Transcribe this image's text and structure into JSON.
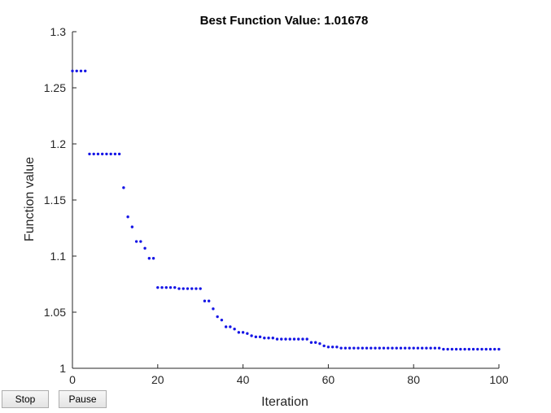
{
  "controls": {
    "stop_label": "Stop",
    "pause_label": "Pause"
  },
  "colors": {
    "marker": "#1515e6",
    "axis": "#262626",
    "text": "#000000"
  },
  "chart_data": {
    "type": "scatter",
    "title": "Best Function Value: 1.01678",
    "xlabel": "Iteration",
    "ylabel": "Function value",
    "xlim": [
      0,
      100
    ],
    "ylim": [
      1,
      1.3
    ],
    "xticks": [
      0,
      20,
      40,
      60,
      80,
      100
    ],
    "yticks": [
      1,
      1.05,
      1.1,
      1.15,
      1.2,
      1.25,
      1.3
    ],
    "xtick_labels": [
      "0",
      "20",
      "40",
      "60",
      "80",
      "100"
    ],
    "ytick_labels": [
      "1",
      "1.05",
      "1.1",
      "1.15",
      "1.2",
      "1.25",
      "1.3"
    ],
    "grid": false,
    "series": [
      {
        "x": [
          0,
          1,
          2,
          3,
          4,
          5,
          6,
          7,
          8,
          9,
          10,
          11,
          12,
          13,
          14,
          15,
          16,
          17,
          18,
          19,
          20,
          21,
          22,
          23,
          24,
          25,
          26,
          27,
          28,
          29,
          30,
          31,
          32,
          33,
          34,
          35,
          36,
          37,
          38,
          39,
          40,
          41,
          42,
          43,
          44,
          45,
          46,
          47,
          48,
          49,
          50,
          51,
          52,
          53,
          54,
          55,
          56,
          57,
          58,
          59,
          60,
          61,
          62,
          63,
          64,
          65,
          66,
          67,
          68,
          69,
          70,
          71,
          72,
          73,
          74,
          75,
          76,
          77,
          78,
          79,
          80,
          81,
          82,
          83,
          84,
          85,
          86,
          87,
          88,
          89,
          90,
          91,
          92,
          93,
          94,
          95,
          96,
          97,
          98,
          99,
          100
        ],
        "y": [
          1.265,
          1.265,
          1.265,
          1.265,
          1.191,
          1.191,
          1.191,
          1.191,
          1.191,
          1.191,
          1.191,
          1.191,
          1.161,
          1.135,
          1.126,
          1.113,
          1.113,
          1.107,
          1.098,
          1.098,
          1.072,
          1.072,
          1.072,
          1.072,
          1.072,
          1.071,
          1.071,
          1.071,
          1.071,
          1.071,
          1.071,
          1.06,
          1.06,
          1.053,
          1.046,
          1.043,
          1.037,
          1.037,
          1.035,
          1.032,
          1.032,
          1.031,
          1.029,
          1.028,
          1.028,
          1.027,
          1.027,
          1.027,
          1.026,
          1.026,
          1.026,
          1.026,
          1.026,
          1.026,
          1.026,
          1.026,
          1.023,
          1.023,
          1.022,
          1.02,
          1.019,
          1.019,
          1.019,
          1.018,
          1.018,
          1.018,
          1.018,
          1.018,
          1.018,
          1.018,
          1.018,
          1.018,
          1.018,
          1.018,
          1.018,
          1.018,
          1.018,
          1.018,
          1.018,
          1.018,
          1.018,
          1.018,
          1.018,
          1.018,
          1.018,
          1.018,
          1.018,
          1.017,
          1.017,
          1.017,
          1.017,
          1.017,
          1.017,
          1.017,
          1.017,
          1.017,
          1.017,
          1.017,
          1.017,
          1.017,
          1.017
        ]
      }
    ]
  }
}
